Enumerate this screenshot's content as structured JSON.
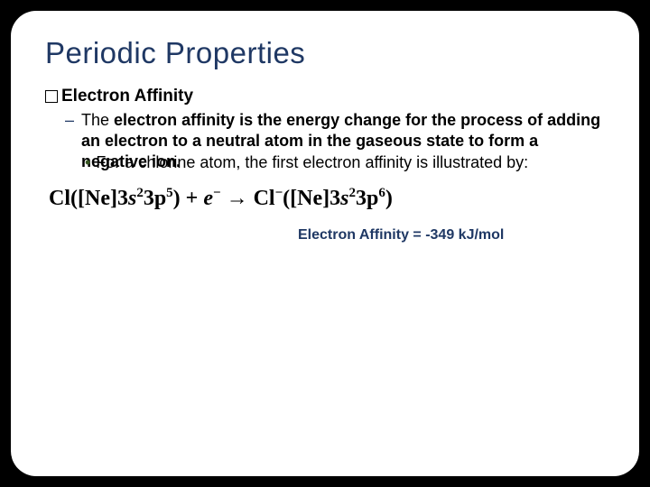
{
  "title": "Periodic Properties",
  "section": {
    "heading": "Electron Affinity",
    "definition_prefix": "The ",
    "definition_bold": "electron affinity is the energy change for the process of adding an electron to a neutral atom in the gaseous state to form a negative ion.",
    "example_text": "For a chlorine atom, the first electron affinity is illustrated by:"
  },
  "equation": {
    "lhs_element": "Cl",
    "lhs_config_open": "([Ne]3",
    "lhs_s_base": "s",
    "lhs_s_exp": "2",
    "lhs_p_base": "3p",
    "lhs_p_exp": "5",
    "lhs_config_close": ")",
    "plus": "+",
    "electron_base": "e",
    "electron_exp": "−",
    "arrow": "→",
    "rhs_element": "Cl",
    "rhs_charge": "−",
    "rhs_config_open": "([Ne]3",
    "rhs_s_base": "s",
    "rhs_s_exp": "2",
    "rhs_p_base": "3p",
    "rhs_p_exp": "6",
    "rhs_config_close": ")"
  },
  "result": {
    "label": "Electron Affinity = -349 kJ/mol"
  },
  "colors": {
    "title": "#1f3864",
    "dash": "#1f3864",
    "dot": "#385723",
    "result": "#1f3864",
    "background": "#000000",
    "slide_bg": "#ffffff"
  }
}
